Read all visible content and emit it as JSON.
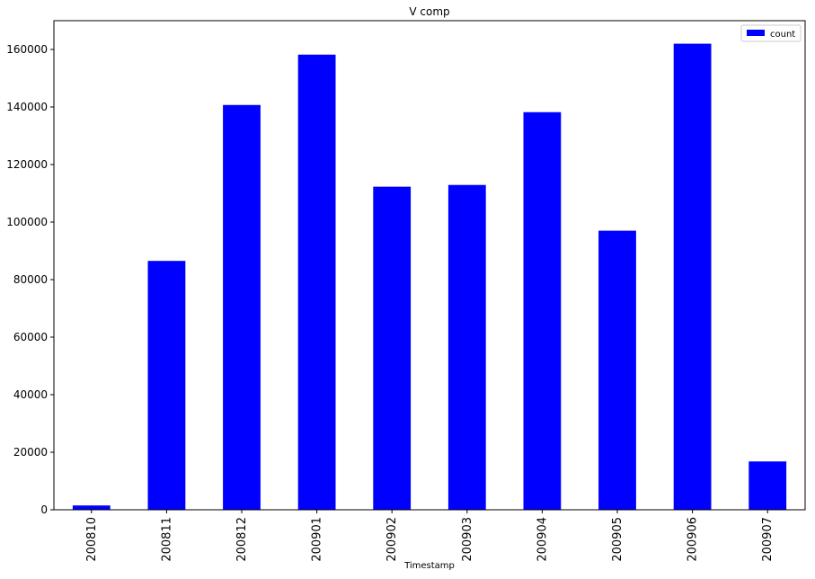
{
  "chart_data": {
    "type": "bar",
    "title": "V comp",
    "xlabel": "Timestamp",
    "ylabel": "",
    "categories": [
      "200810",
      "200811",
      "200812",
      "200901",
      "200902",
      "200903",
      "200904",
      "200905",
      "200906",
      "200907"
    ],
    "series": [
      {
        "name": "count",
        "color": "#0000ff",
        "values": [
          1500,
          86500,
          140700,
          158200,
          112300,
          112900,
          138200,
          97000,
          162000,
          16800
        ]
      }
    ],
    "ylim": [
      0,
      170000
    ],
    "yticks": [
      0,
      20000,
      40000,
      60000,
      80000,
      100000,
      120000,
      140000,
      160000
    ],
    "ytick_labels": [
      "0",
      "20000",
      "40000",
      "60000",
      "80000",
      "100000",
      "120000",
      "140000",
      "160000"
    ],
    "grid": false,
    "legend_position": "top-right"
  }
}
